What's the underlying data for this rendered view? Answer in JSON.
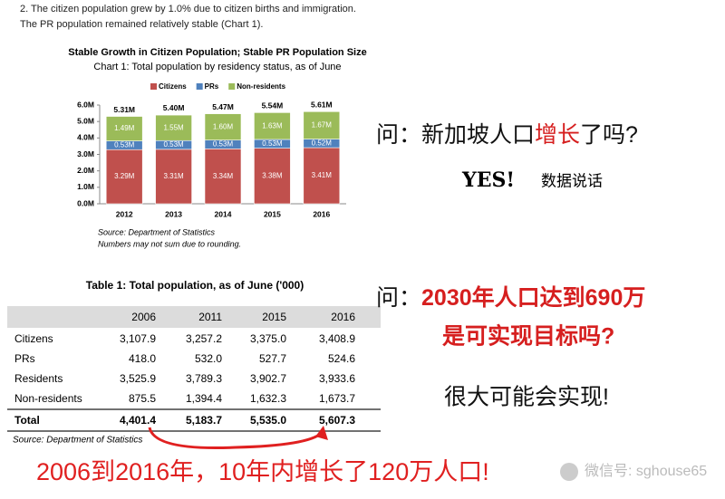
{
  "header": {
    "lines": [
      "2.    The citizen population grew by 1.0% due to citizen births and immigration.",
      "The PR population remained relatively stable (Chart 1)."
    ]
  },
  "chart_data": {
    "type": "stacked_bar",
    "title": "Stable Growth in Citizen Population; Stable PR Population Size",
    "subtitle": "Chart 1: Total population by residency status, as of June",
    "categories": [
      "2012",
      "2013",
      "2014",
      "2015",
      "2016"
    ],
    "series": [
      {
        "name": "Citizens",
        "color": "#c0504d",
        "values": [
          3.29,
          3.31,
          3.34,
          3.38,
          3.41
        ],
        "value_labels": [
          "3.29M",
          "3.31M",
          "3.34M",
          "3.38M",
          "3.41M"
        ]
      },
      {
        "name": "PRs",
        "color": "#4f81bd",
        "values": [
          0.53,
          0.53,
          0.53,
          0.53,
          0.52
        ],
        "value_labels": [
          "0.53M",
          "0.53M",
          "0.53M",
          "0.53M",
          "0.52M"
        ]
      },
      {
        "name": "Non-residents",
        "color": "#9bbb59",
        "values": [
          1.49,
          1.55,
          1.6,
          1.63,
          1.67
        ],
        "value_labels": [
          "1.49M",
          "1.55M",
          "1.60M",
          "1.63M",
          "1.67M"
        ]
      }
    ],
    "totals": {
      "values": [
        5.31,
        5.4,
        5.47,
        5.54,
        5.61
      ],
      "value_labels": [
        "5.31M",
        "5.40M",
        "5.47M",
        "5.54M",
        "5.61M"
      ]
    },
    "ylim": [
      0,
      6
    ],
    "yticks": [
      {
        "value": 0,
        "label": "0.0M"
      },
      {
        "value": 1,
        "label": "1.0M"
      },
      {
        "value": 2,
        "label": "2.0M"
      },
      {
        "value": 3,
        "label": "3.0M"
      },
      {
        "value": 4,
        "label": "4.0M"
      },
      {
        "value": 5,
        "label": "5.0M"
      },
      {
        "value": 6,
        "label": "6.0M"
      }
    ],
    "notes": [
      "Source: Department of Statistics",
      "Numbers may not sum due to rounding."
    ]
  },
  "table": {
    "title": "Table 1: Total population, as of June ('000)",
    "columns": [
      "2006",
      "2011",
      "2015",
      "2016"
    ],
    "rows": [
      [
        "Citizens",
        "3,107.9",
        "3,257.2",
        "3,375.0",
        "3,408.9"
      ],
      [
        "PRs",
        "418.0",
        "532.0",
        "527.7",
        "524.6"
      ],
      [
        "Residents",
        "3,525.9",
        "3,789.3",
        "3,902.7",
        "3,933.6"
      ],
      [
        "Non-residents",
        "875.5",
        "1,394.4",
        "1,632.3",
        "1,673.7"
      ],
      [
        "Total",
        "4,401.4",
        "5,183.7",
        "5,535.0",
        "5,607.3"
      ]
    ],
    "source": "Source: Department of Statistics"
  },
  "annotations": {
    "q1": [
      "问：新加坡人口",
      "增长",
      "了吗?"
    ],
    "yes": "YES!",
    "yes_note": "数据说话",
    "q2": [
      "问：",
      "2030年人口达到690万"
    ],
    "q2_line2": "是可实现目标吗?",
    "answer": "很大可能会实现!",
    "summary": "2006到2016年，10年内增长了120万人口!",
    "watermark": "微信号: sghouse65"
  }
}
